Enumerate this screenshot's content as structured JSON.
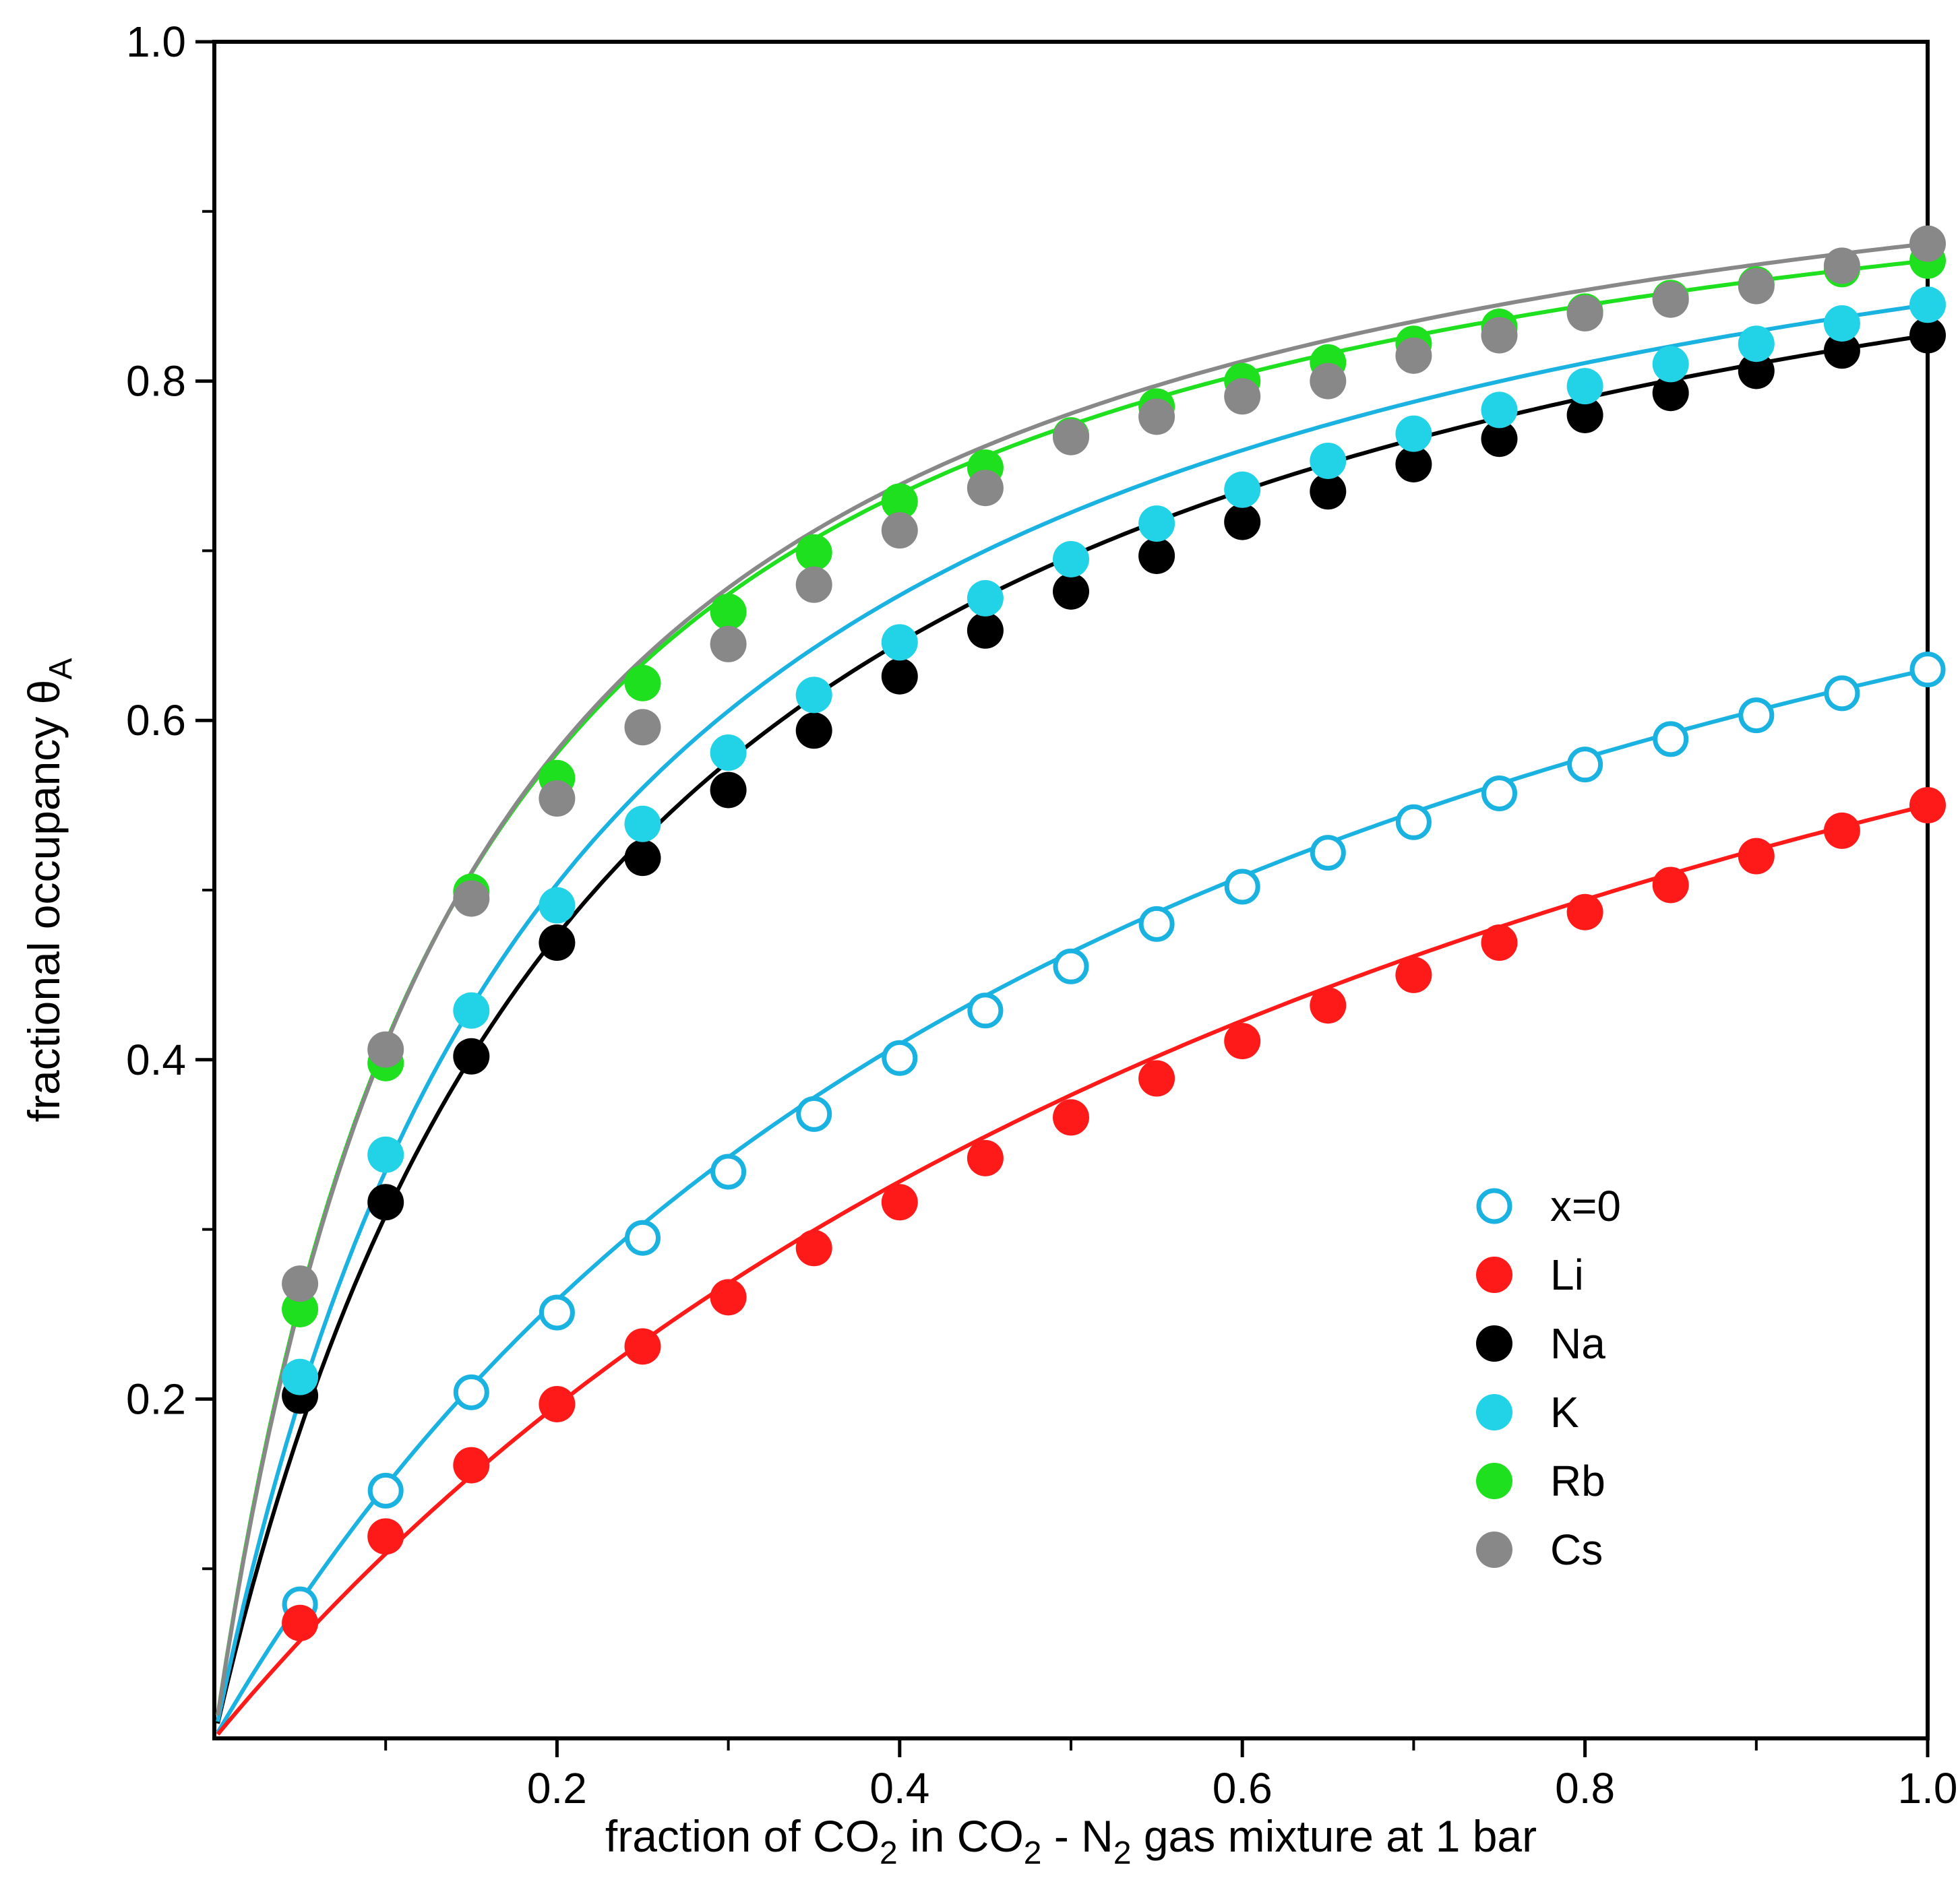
{
  "chart_data": {
    "type": "scatter",
    "xlabel": {
      "prefix": "fraction of CO",
      "sub1": "2",
      "mid1": " in CO",
      "sub2": "2",
      "mid2": " - N",
      "sub3": "2",
      "suffix": " gas mixture at 1 bar"
    },
    "ylabel": {
      "main": "fractional occupancy θ",
      "sub": "A"
    },
    "xlim": [
      0,
      1.0
    ],
    "ylim": [
      0,
      1.0
    ],
    "xticks": [
      0.2,
      0.4,
      0.6,
      0.8,
      1.0
    ],
    "xtick_labels": [
      "0.2",
      "0.4",
      "0.6",
      "0.8",
      "1.0"
    ],
    "xminor": [
      0.1,
      0.3,
      0.5,
      0.7,
      0.9
    ],
    "yticks": [
      0.2,
      0.4,
      0.6,
      0.8,
      1.0
    ],
    "ytick_labels": [
      "0.2",
      "0.4",
      "0.6",
      "0.8",
      "1.0"
    ],
    "yminor": [
      0.1,
      0.3,
      0.5,
      0.7,
      0.9
    ],
    "x": [
      0.05,
      0.1,
      0.15,
      0.2,
      0.25,
      0.3,
      0.35,
      0.4,
      0.45,
      0.5,
      0.55,
      0.6,
      0.65,
      0.7,
      0.75,
      0.8,
      0.85,
      0.9,
      0.95,
      1.0
    ],
    "legend_position": "bottom-right",
    "series": [
      {
        "name": "x=0",
        "color": "#1ab2e0",
        "line_color": "#1ab2e0",
        "filled": false,
        "values": [
          0.079,
          0.146,
          0.204,
          0.251,
          0.295,
          0.334,
          0.368,
          0.401,
          0.429,
          0.455,
          0.48,
          0.502,
          0.522,
          0.54,
          0.557,
          0.574,
          0.589,
          0.603,
          0.616,
          0.63
        ],
        "fit_k": 1.78,
        "fit_n": 1.0
      },
      {
        "name": "Li",
        "color": "#ff1a1a",
        "line_color": "#ff1a1a",
        "filled": true,
        "values": [
          0.068,
          0.119,
          0.161,
          0.197,
          0.231,
          0.26,
          0.289,
          0.316,
          0.342,
          0.366,
          0.389,
          0.411,
          0.432,
          0.45,
          0.469,
          0.487,
          0.503,
          0.52,
          0.535,
          0.55
        ],
        "fit_k": 1.22,
        "fit_n": 1.0
      },
      {
        "name": "Na",
        "color": "#000000",
        "line_color": "#000000",
        "filled": true,
        "values": [
          0.202,
          0.316,
          0.402,
          0.469,
          0.519,
          0.559,
          0.594,
          0.626,
          0.653,
          0.676,
          0.697,
          0.717,
          0.735,
          0.751,
          0.766,
          0.78,
          0.793,
          0.806,
          0.818,
          0.827
        ],
        "fit_k": 4.35,
        "fit_n": 1.0
      },
      {
        "name": "K",
        "color": "#22d3e8",
        "line_color": "#1ab2e0",
        "filled": true,
        "values": [
          0.213,
          0.344,
          0.429,
          0.491,
          0.539,
          0.581,
          0.615,
          0.646,
          0.672,
          0.695,
          0.716,
          0.736,
          0.753,
          0.769,
          0.783,
          0.797,
          0.81,
          0.822,
          0.834,
          0.845
        ],
        "fit_k": 4.9,
        "fit_n": 1.0
      },
      {
        "name": "Rb",
        "color": "#1ee01e",
        "line_color": "#1ee01e",
        "filled": true,
        "values": [
          0.253,
          0.398,
          0.499,
          0.566,
          0.622,
          0.664,
          0.699,
          0.729,
          0.749,
          0.768,
          0.785,
          0.8,
          0.811,
          0.822,
          0.832,
          0.841,
          0.849,
          0.857,
          0.866,
          0.871
        ],
        "fit_k": 7.0,
        "fit_n": 1.0
      },
      {
        "name": "Cs",
        "color": "#888888",
        "line_color": "#888888",
        "filled": true,
        "values": [
          0.268,
          0.406,
          0.495,
          0.554,
          0.596,
          0.645,
          0.68,
          0.712,
          0.737,
          0.767,
          0.779,
          0.791,
          0.8,
          0.815,
          0.827,
          0.84,
          0.848,
          0.856,
          0.868,
          0.881
        ],
        "fit_k": 6.8,
        "fit_n": 1.0
      }
    ]
  }
}
